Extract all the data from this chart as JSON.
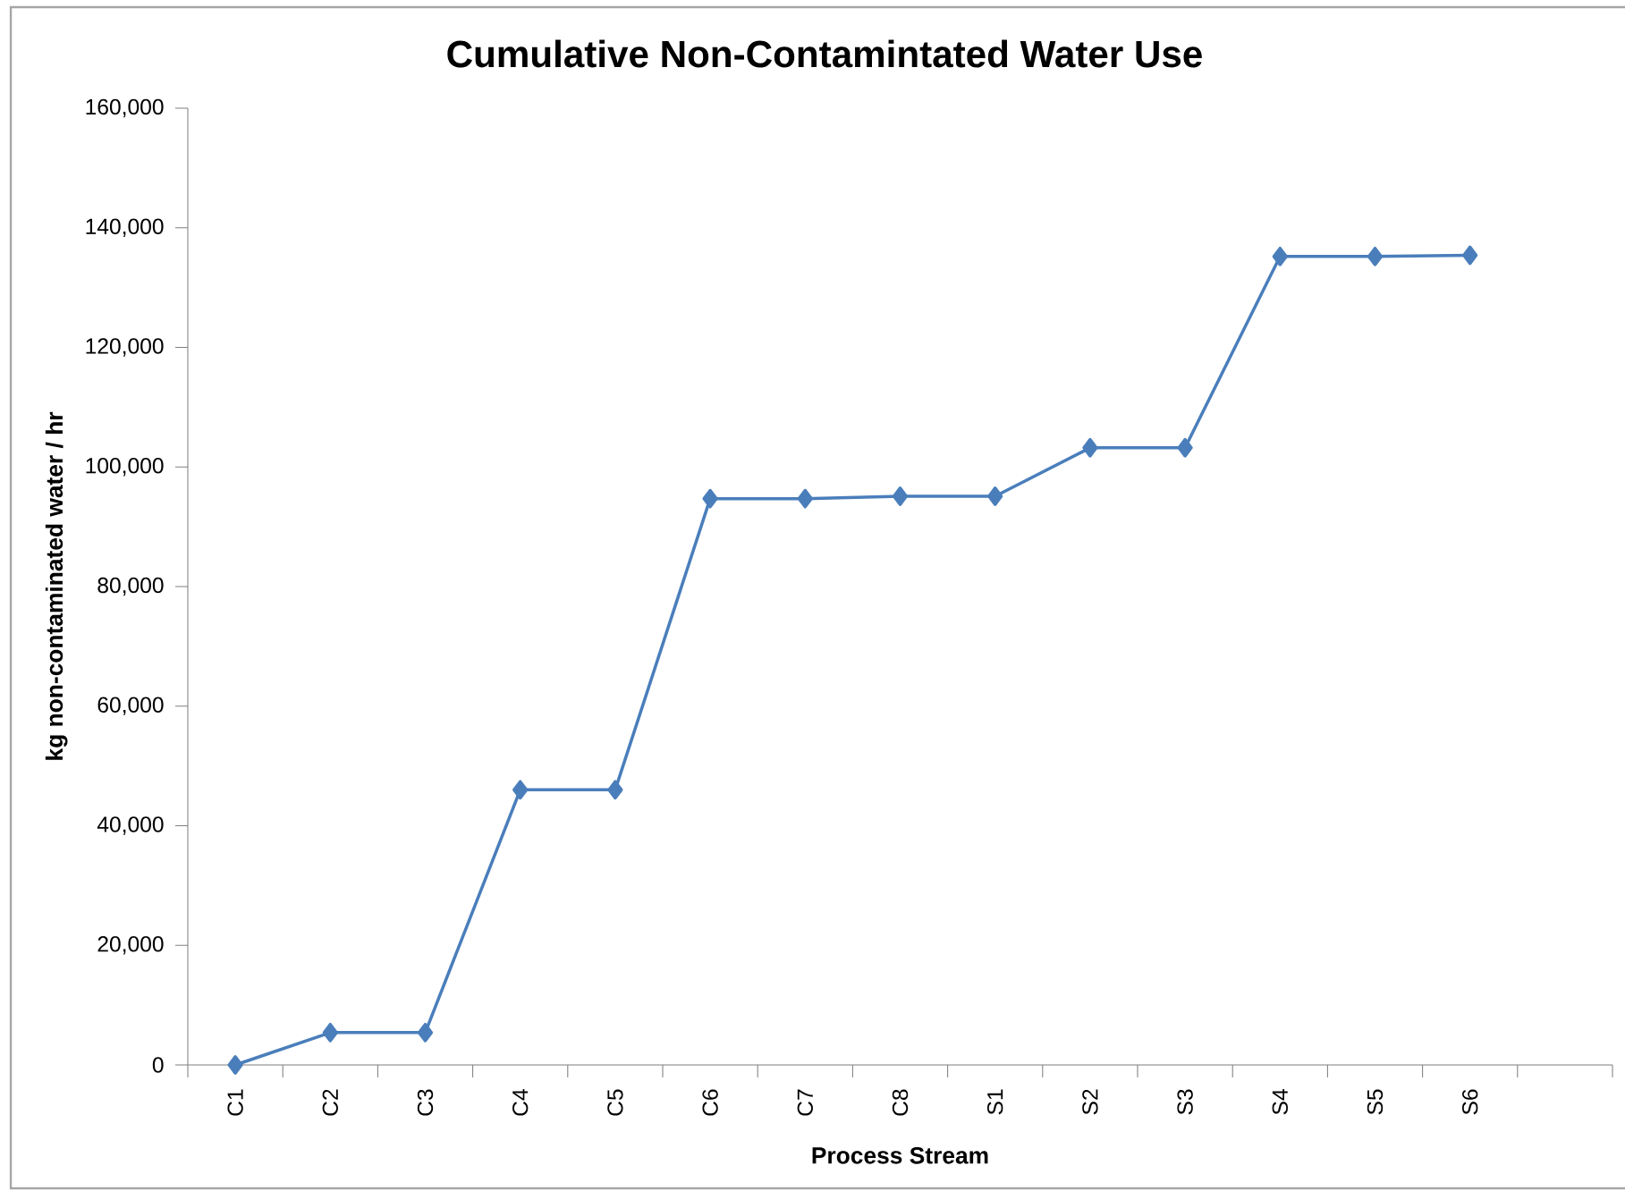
{
  "chart_data": {
    "type": "line",
    "title": "Cumulative Non-Contamintated Water Use",
    "xlabel": "Process Stream",
    "ylabel": "kg non-contaminated water / hr",
    "categories": [
      "C1",
      "C2",
      "C3",
      "C4",
      "C5",
      "C6",
      "C7",
      "C8",
      "S1",
      "S2",
      "S3",
      "S4",
      "S5",
      "S6",
      null
    ],
    "series": [
      {
        "color": "#4a7ebb",
        "values": [
          0,
          5400,
          5400,
          46000,
          46000,
          94700,
          94700,
          95100,
          95100,
          103200,
          103200,
          135200,
          135200,
          135400,
          null
        ]
      }
    ],
    "ylim": [
      0,
      160000
    ],
    "yticks": [
      0,
      {
        "value": 20000,
        "label": "20,000"
      },
      {
        "value": 40000,
        "label": "40,000"
      },
      {
        "value": 60000,
        "label": "60,000"
      },
      {
        "value": 80000,
        "label": "80,000"
      },
      {
        "value": 100000,
        "label": "100,000"
      },
      {
        "value": 120000,
        "label": "120,000"
      },
      {
        "value": 140000,
        "label": "140,000"
      },
      {
        "value": 160000,
        "label": "160,000"
      }
    ],
    "marker": "diamond",
    "line_style": "solid",
    "grid": false,
    "legend": false
  }
}
